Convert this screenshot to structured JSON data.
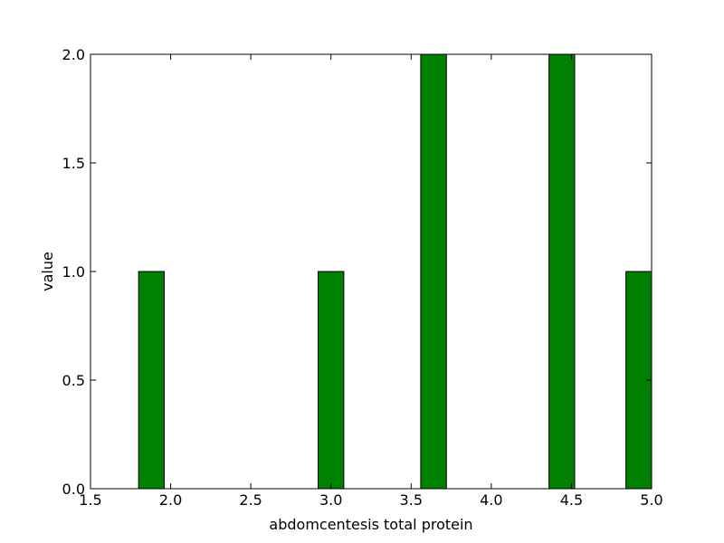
{
  "chart_data": {
    "type": "bar",
    "title": "",
    "xlabel": "abdomcentesis total protein",
    "ylabel": "value",
    "xlim": [
      1.5,
      5.0
    ],
    "ylim": [
      0.0,
      2.0
    ],
    "xticks": [
      "1.5",
      "2.0",
      "2.5",
      "3.0",
      "3.5",
      "4.0",
      "4.5",
      "5.0"
    ],
    "yticks": [
      "0.0",
      "0.5",
      "1.0",
      "1.5",
      "2.0"
    ],
    "bin_width": 0.16,
    "bars": [
      {
        "x_start": 1.8,
        "value": 1
      },
      {
        "x_start": 2.92,
        "value": 1
      },
      {
        "x_start": 3.56,
        "value": 2
      },
      {
        "x_start": 4.36,
        "value": 2
      },
      {
        "x_start": 4.84,
        "value": 1
      }
    ],
    "grid": false,
    "legend": "none",
    "colors": {
      "bar": "#008000",
      "edge": "#000000"
    }
  }
}
